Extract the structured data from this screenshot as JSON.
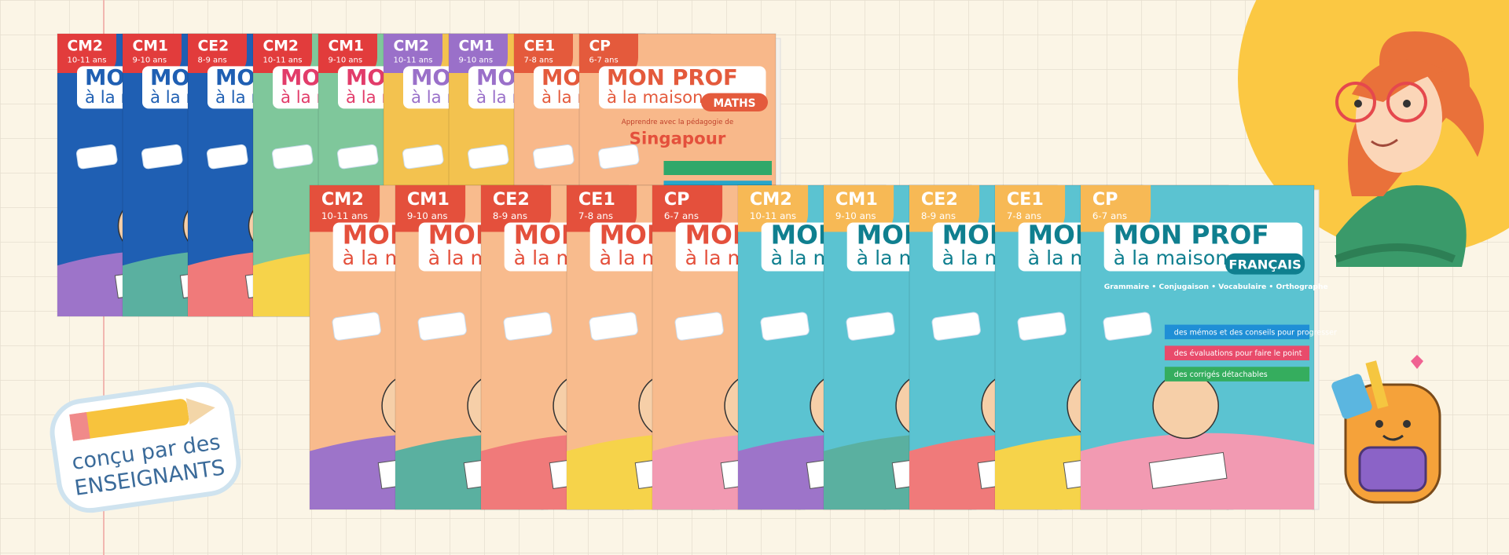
{
  "series_title": "MON PROF",
  "series_subtitle": "à la maison",
  "back_row": {
    "subject": "MATHS",
    "tagline": "Apprendre avec la pédagogie de",
    "method": "Singapour",
    "books": [
      {
        "level": "CM2",
        "ages": "10-11 ans"
      },
      {
        "level": "CM1",
        "ages": "9-10 ans"
      },
      {
        "level": "CE2",
        "ages": "8-9 ans"
      },
      {
        "level": "CM2",
        "ages": "10-11 ans"
      },
      {
        "level": "CM1",
        "ages": "9-10 ans"
      },
      {
        "level": "CM2",
        "ages": "10-11 ans"
      },
      {
        "level": "CM1",
        "ages": "9-10 ans"
      },
      {
        "level": "CE1",
        "ages": "7-8 ans"
      },
      {
        "level": "CP",
        "ages": "6-7 ans"
      }
    ]
  },
  "front_row": {
    "subject": "FRANÇAIS",
    "topics": "Grammaire • Conjugaison • Vocabulaire • Orthographe",
    "features": [
      "des mémos et des conseils pour progresser",
      "des évaluations pour faire le point",
      "des corrigés détachables"
    ],
    "books": [
      {
        "level": "CM2",
        "ages": "10-11 ans"
      },
      {
        "level": "CM1",
        "ages": "9-10 ans"
      },
      {
        "level": "CE2",
        "ages": "8-9 ans"
      },
      {
        "level": "CE1",
        "ages": "7-8 ans"
      },
      {
        "level": "CP",
        "ages": "6-7 ans"
      },
      {
        "level": "CM2",
        "ages": "10-11 ans"
      },
      {
        "level": "CM1",
        "ages": "9-10 ans"
      },
      {
        "level": "CE2",
        "ages": "8-9 ans"
      },
      {
        "level": "CE1",
        "ages": "7-8 ans"
      },
      {
        "level": "CP",
        "ages": "6-7 ans"
      }
    ]
  },
  "badge": {
    "line1": "conçu par des",
    "line2": "ENSEIGNANTS"
  }
}
